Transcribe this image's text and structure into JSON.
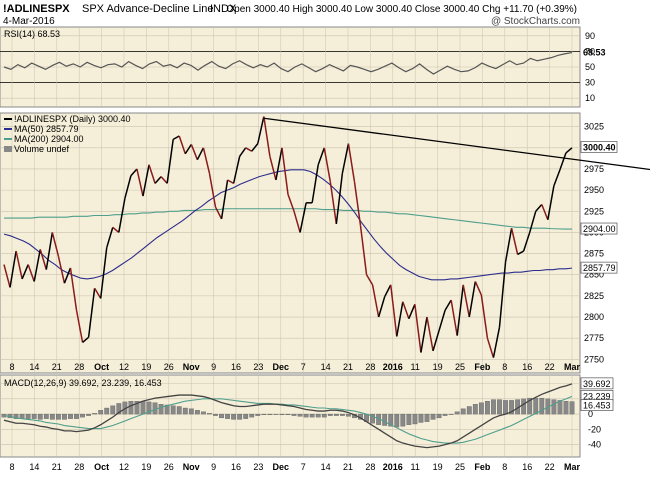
{
  "header": {
    "symbol": "!ADLINESPX",
    "name": "SPX Advance-Decline Line",
    "exchange": "INDX",
    "date": "4-Mar-2016",
    "ohlc": "Open 3000.40  High 3000.40  Low 3000.40  Close 3000.40  Chg +11.70 (+0.39%)",
    "watermark": "@ StockCharts.com"
  },
  "colors": {
    "panel_bg": "#f5efd9",
    "up": "#000000",
    "down": "#8b1a1a",
    "ma50": "#2c2c8c",
    "ma200": "#4e9e8c",
    "rsi": "#555555",
    "hist": "#888888",
    "grid": "#c9c2ae",
    "trendline": "#000000"
  },
  "chart_data": [
    {
      "type": "line",
      "panel": "rsi",
      "legend": "RSI(14) 68.53",
      "ylim": [
        0,
        100
      ],
      "ticks": [
        10,
        30,
        50,
        70,
        90
      ],
      "last_value_label": "68.53",
      "series": [
        {
          "name": "RSI(14)",
          "values": [
            50,
            47,
            53,
            49,
            55,
            51,
            47,
            52,
            56,
            51,
            54,
            50,
            56,
            52,
            49,
            53,
            54,
            50,
            57,
            52,
            48,
            54,
            57,
            51,
            53,
            49,
            55,
            52,
            46,
            52,
            57,
            51,
            48,
            54,
            58,
            53,
            49,
            53,
            50,
            55,
            48,
            44,
            50,
            54,
            49,
            44,
            48,
            53,
            49,
            45,
            52,
            50,
            47,
            44,
            47,
            51,
            55,
            49,
            44,
            48,
            54,
            47,
            41,
            46,
            51,
            47,
            44,
            45,
            49,
            55,
            51,
            48,
            53,
            58,
            53,
            55,
            61,
            58,
            60,
            62,
            65,
            67,
            68.53
          ]
        }
      ]
    },
    {
      "type": "line",
      "panel": "price",
      "legend": [
        "!ADLINESPX (Daily) 3000.40",
        "MA(50) 2857.79",
        "MA(200) 2904.00",
        "Volume undef"
      ],
      "ylim": [
        2735,
        3040
      ],
      "y_ticks": [
        2750,
        2775,
        2800,
        2825,
        2850,
        2875,
        2900,
        2925,
        2950,
        2975,
        3000,
        3025
      ],
      "x_labels": [
        "8",
        "14",
        "21",
        "28",
        "Oct",
        "12",
        "19",
        "26",
        "Nov",
        "9",
        "16",
        "23",
        "Dec",
        "7",
        "14",
        "21",
        "28",
        "2016",
        "11",
        "19",
        "25",
        "Feb",
        "8",
        "16",
        "22",
        "Mar"
      ],
      "last_value_labels": [
        "3000.40",
        "2904.00",
        "2857.79"
      ],
      "trendline": {
        "start": {
          "day": 43,
          "value": 3035
        },
        "end": {
          "day": 120,
          "value": 2962
        }
      },
      "series": [
        {
          "name": "!ADLINESPX",
          "values": [
            2862,
            2835,
            2878,
            2845,
            2862,
            2842,
            2880,
            2856,
            2900,
            2872,
            2840,
            2858,
            2808,
            2770,
            2776,
            2834,
            2822,
            2882,
            2906,
            2900,
            2940,
            2967,
            2975,
            2943,
            2980,
            2958,
            2966,
            2958,
            3010,
            3014,
            2993,
            3004,
            2986,
            3000,
            2970,
            2930,
            2916,
            2962,
            2958,
            2990,
            3000,
            2996,
            3005,
            3037,
            2990,
            2962,
            3000,
            2945,
            2925,
            2900,
            2935,
            2935,
            2980,
            3000,
            2960,
            2910,
            2970,
            3005,
            2960,
            2908,
            2850,
            2838,
            2800,
            2824,
            2838,
            2777,
            2818,
            2798,
            2815,
            2758,
            2800,
            2760,
            2784,
            2808,
            2820,
            2778,
            2838,
            2800,
            2842,
            2826,
            2775,
            2752,
            2788,
            2865,
            2905,
            2874,
            2878,
            2900,
            2925,
            2933,
            2915,
            2955,
            2974,
            2994,
            3000
          ]
        },
        {
          "name": "MA(50)",
          "values": [
            2898,
            2896,
            2893,
            2890,
            2886,
            2880,
            2874,
            2867,
            2862,
            2856,
            2852,
            2849,
            2846,
            2845,
            2846,
            2848,
            2851,
            2855,
            2860,
            2865,
            2870,
            2876,
            2882,
            2888,
            2894,
            2899,
            2904,
            2909,
            2914,
            2920,
            2926,
            2931,
            2937,
            2942,
            2947,
            2950,
            2953,
            2957,
            2960,
            2963,
            2966,
            2968,
            2970,
            2972,
            2973,
            2974,
            2974,
            2974,
            2972,
            2968,
            2963,
            2957,
            2950,
            2942,
            2933,
            2923,
            2912,
            2902,
            2892,
            2883,
            2875,
            2868,
            2861,
            2856,
            2852,
            2848,
            2846,
            2844,
            2844,
            2844,
            2845,
            2845,
            2846,
            2847,
            2848,
            2849,
            2850,
            2851,
            2852,
            2852,
            2853,
            2853,
            2854,
            2855,
            2855,
            2856,
            2856,
            2857,
            2857,
            2857.79
          ]
        },
        {
          "name": "MA(200)",
          "values": [
            2917,
            2917,
            2917,
            2917,
            2917,
            2918,
            2918,
            2918,
            2918,
            2918,
            2919,
            2919,
            2919,
            2920,
            2920,
            2920,
            2921,
            2921,
            2922,
            2922,
            2923,
            2923,
            2924,
            2924,
            2925,
            2925,
            2926,
            2926,
            2926,
            2927,
            2927,
            2927,
            2928,
            2928,
            2928,
            2928,
            2928,
            2928,
            2928,
            2928,
            2928,
            2928,
            2928,
            2928,
            2928,
            2928,
            2927,
            2927,
            2927,
            2926,
            2926,
            2926,
            2925,
            2925,
            2924,
            2924,
            2923,
            2922,
            2922,
            2921,
            2920,
            2919,
            2918,
            2917,
            2916,
            2915,
            2914,
            2913,
            2912,
            2911,
            2910,
            2909,
            2908,
            2907,
            2906,
            2906,
            2905,
            2905,
            2905,
            2904.5,
            2904.2,
            2904.0,
            2904.0
          ]
        }
      ]
    },
    {
      "type": "line",
      "panel": "macd",
      "legend": "MACD(12,26,9) 39.692, 23.239, 16.453",
      "ylim": [
        -55,
        50
      ],
      "y_ticks": [
        -40,
        -20,
        0,
        20,
        40
      ],
      "last_value_labels": [
        "39.692",
        "23.239",
        "16.453"
      ],
      "series": [
        {
          "name": "MACD",
          "values": [
            -8,
            -10,
            -12,
            -12,
            -13,
            -14,
            -16,
            -17,
            -19,
            -20,
            -22,
            -22,
            -23,
            -22,
            -21,
            -18,
            -14,
            -9,
            -4,
            2,
            7,
            11,
            14,
            17,
            19,
            21,
            22,
            23,
            24,
            25,
            25,
            25,
            24,
            23,
            21,
            18,
            15,
            13,
            11,
            10,
            10,
            11,
            12,
            13,
            13,
            13,
            12,
            11,
            10,
            8,
            6,
            5,
            4,
            4,
            5,
            5,
            4,
            2,
            -1,
            -5,
            -10,
            -15,
            -20,
            -25,
            -30,
            -35,
            -38,
            -40,
            -42,
            -43,
            -44,
            -43,
            -42,
            -40,
            -38,
            -35,
            -30,
            -25,
            -20,
            -15,
            -10,
            -5,
            -2,
            0,
            3,
            8,
            13,
            18,
            22,
            26,
            29,
            32,
            35,
            37,
            39.692
          ]
        },
        {
          "name": "Signal",
          "values": [
            -2,
            -3,
            -5,
            -6,
            -7,
            -8,
            -9,
            -11,
            -12,
            -13,
            -15,
            -16,
            -17,
            -18,
            -19,
            -19,
            -19,
            -17,
            -15,
            -12,
            -9,
            -6,
            -3,
            0,
            3,
            6,
            9,
            11,
            13,
            15,
            17,
            18,
            19,
            20,
            20,
            20,
            20,
            19,
            18,
            17,
            16,
            15,
            14,
            14,
            14,
            13,
            13,
            12,
            12,
            11,
            10,
            9,
            8,
            8,
            7,
            7,
            6,
            5,
            4,
            2,
            0,
            -3,
            -6,
            -10,
            -14,
            -18,
            -22,
            -26,
            -29,
            -32,
            -34,
            -36,
            -37,
            -38,
            -38,
            -38,
            -37,
            -35,
            -33,
            -30,
            -27,
            -24,
            -21,
            -18,
            -15,
            -11,
            -7,
            -3,
            1,
            5,
            9,
            13,
            17,
            20,
            23.239
          ]
        },
        {
          "name": "Histogram",
          "values": [
            -4,
            -5,
            -6,
            -6,
            -6,
            -6,
            -7,
            -6,
            -7,
            -7,
            -7,
            -6,
            -6,
            -4,
            -2,
            1,
            5,
            8,
            11,
            14,
            16,
            17,
            17,
            17,
            16,
            15,
            13,
            12,
            11,
            10,
            8,
            7,
            5,
            3,
            1,
            -2,
            -5,
            -6,
            -7,
            -7,
            -6,
            -4,
            -2,
            -1,
            -1,
            0,
            -1,
            -1,
            -2,
            -3,
            -4,
            -4,
            -4,
            -4,
            -2,
            -2,
            -2,
            -3,
            -5,
            -7,
            -10,
            -12,
            -14,
            -15,
            -16,
            -17,
            -16,
            -14,
            -13,
            -11,
            -10,
            -7,
            -5,
            -2,
            0,
            3,
            7,
            10,
            13,
            15,
            17,
            19,
            19,
            18,
            18,
            19,
            20,
            21,
            21,
            21,
            20,
            19,
            18,
            17,
            16.453
          ]
        }
      ]
    }
  ]
}
